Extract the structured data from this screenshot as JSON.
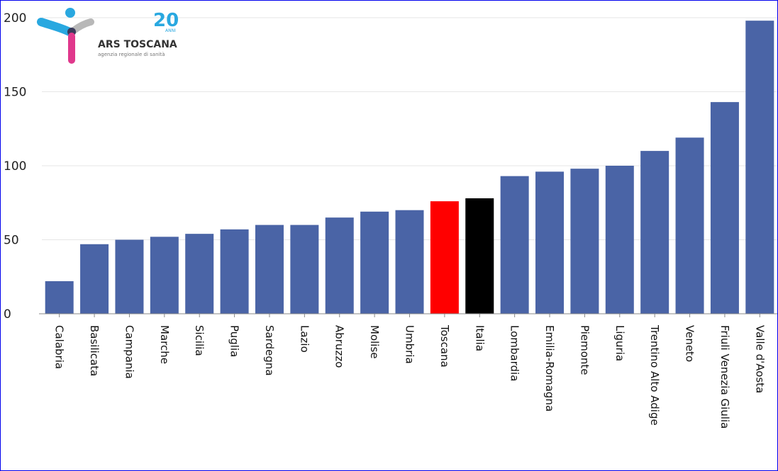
{
  "logo": {
    "name": "ARS TOSCANA",
    "subtitle": "agenzia regionale di sanità",
    "anniversary": "20",
    "anniversary_word": "ANNI"
  },
  "colors": {
    "bar_default": "#4a64a6",
    "bar_toscana": "#ff0000",
    "bar_italia": "#000000",
    "gridline": "#e6e6e6",
    "axis": "#888888",
    "border": "#0000ee"
  },
  "chart_data": {
    "type": "bar",
    "title": "",
    "xlabel": "",
    "ylabel": "",
    "ylim": [
      0,
      200
    ],
    "yticks": [
      0,
      50,
      100,
      150,
      200
    ],
    "grid": true,
    "categories": [
      "Calabria",
      "Basilicata",
      "Campania",
      "Marche",
      "Sicilia",
      "Puglia",
      "Sardegna",
      "Lazio",
      "Abruzzo",
      "Molise",
      "Umbria",
      "Toscana",
      "Italia",
      "Lombardia",
      "Emilia-Romagna",
      "Piemonte",
      "Liguria",
      "Trentino Alto Adige",
      "Veneto",
      "Friuli Venezia Giulia",
      "Valle d'Aosta"
    ],
    "values": [
      22,
      47,
      50,
      52,
      54,
      57,
      60,
      60,
      65,
      69,
      70,
      76,
      78,
      93,
      96,
      98,
      100,
      110,
      119,
      143,
      198
    ],
    "highlights": {
      "Toscana": "#ff0000",
      "Italia": "#000000"
    }
  }
}
